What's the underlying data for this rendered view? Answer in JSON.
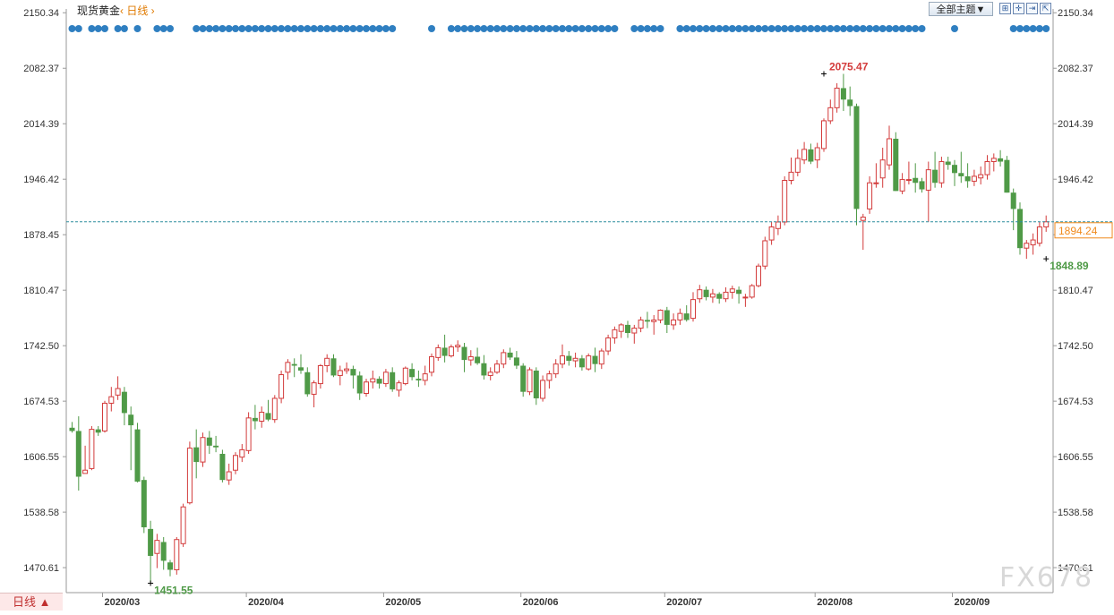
{
  "header": {
    "instrument": "现货黄金",
    "period_label": "‹ 日线 ›",
    "theme_button": "全部主题▼",
    "tool_icons": [
      "zoom-fit-icon",
      "crosshair-icon",
      "go-end-icon",
      "expand-icon"
    ]
  },
  "bottom_bar": {
    "period_label": "日线 ▲"
  },
  "watermark": "FX678",
  "colors": {
    "up": "#d33b3b",
    "down": "#4f9a47",
    "dots": "#2f7fc1",
    "price_line": "#2e8e9e",
    "price_tag": "#f08a1c"
  },
  "chart_data": {
    "type": "candlestick",
    "ylim": [
      1440,
      2155
    ],
    "y_ticks": [
      2150.34,
      2082.37,
      2014.39,
      1946.42,
      1878.45,
      1810.47,
      1742.5,
      1674.53,
      1606.55,
      1538.58,
      1470.61
    ],
    "x_ticks": [
      {
        "label": "2020/03",
        "index": 5
      },
      {
        "label": "2020/04",
        "index": 27
      },
      {
        "label": "2020/05",
        "index": 48
      },
      {
        "label": "2020/06",
        "index": 69
      },
      {
        "label": "2020/07",
        "index": 91
      },
      {
        "label": "2020/08",
        "index": 114
      },
      {
        "label": "2020/09",
        "index": 135
      }
    ],
    "current_price": 1894.24,
    "high_annotation": {
      "label": "2075.47",
      "index": 115,
      "value": 2075.47
    },
    "low_annotation": {
      "label": "1451.55",
      "index": 12,
      "value": 1451.55
    },
    "low2_annotation": {
      "label": "1848.89",
      "index": 149,
      "value": 1848.89
    },
    "candles": [
      [
        1642,
        1649,
        1636,
        1638
      ],
      [
        1638,
        1656,
        1565,
        1582
      ],
      [
        1586,
        1620,
        1586,
        1590
      ],
      [
        1592,
        1644,
        1590,
        1640
      ],
      [
        1640,
        1644,
        1632,
        1636
      ],
      [
        1638,
        1675,
        1636,
        1672
      ],
      [
        1672,
        1692,
        1662,
        1680
      ],
      [
        1682,
        1705,
        1676,
        1690
      ],
      [
        1686,
        1692,
        1645,
        1660
      ],
      [
        1658,
        1668,
        1590,
        1645
      ],
      [
        1640,
        1648,
        1575,
        1576
      ],
      [
        1578,
        1582,
        1513,
        1520
      ],
      [
        1518,
        1528,
        1451,
        1485
      ],
      [
        1488,
        1512,
        1470,
        1504
      ],
      [
        1502,
        1508,
        1468,
        1479
      ],
      [
        1477,
        1480,
        1460,
        1468
      ],
      [
        1468,
        1508,
        1462,
        1505
      ],
      [
        1500,
        1549,
        1496,
        1545
      ],
      [
        1550,
        1625,
        1548,
        1617
      ],
      [
        1618,
        1640,
        1580,
        1600
      ],
      [
        1600,
        1636,
        1594,
        1630
      ],
      [
        1630,
        1638,
        1610,
        1620
      ],
      [
        1620,
        1632,
        1612,
        1618
      ],
      [
        1610,
        1615,
        1575,
        1578
      ],
      [
        1578,
        1598,
        1572,
        1588
      ],
      [
        1590,
        1612,
        1585,
        1608
      ],
      [
        1606,
        1622,
        1600,
        1615
      ],
      [
        1614,
        1661,
        1610,
        1654
      ],
      [
        1654,
        1670,
        1640,
        1650
      ],
      [
        1650,
        1668,
        1642,
        1661
      ],
      [
        1660,
        1676,
        1650,
        1652
      ],
      [
        1652,
        1682,
        1648,
        1678
      ],
      [
        1678,
        1712,
        1672,
        1707
      ],
      [
        1710,
        1726,
        1701,
        1722
      ],
      [
        1720,
        1727,
        1704,
        1718
      ],
      [
        1716,
        1732,
        1708,
        1712
      ],
      [
        1710,
        1716,
        1680,
        1683
      ],
      [
        1683,
        1700,
        1667,
        1697
      ],
      [
        1696,
        1720,
        1690,
        1718
      ],
      [
        1718,
        1732,
        1710,
        1727
      ],
      [
        1727,
        1732,
        1704,
        1706
      ],
      [
        1706,
        1718,
        1694,
        1712
      ],
      [
        1712,
        1722,
        1708,
        1714
      ],
      [
        1714,
        1718,
        1690,
        1706
      ],
      [
        1706,
        1711,
        1676,
        1684
      ],
      [
        1684,
        1702,
        1680,
        1698
      ],
      [
        1698,
        1712,
        1690,
        1702
      ],
      [
        1702,
        1705,
        1690,
        1696
      ],
      [
        1696,
        1714,
        1692,
        1710
      ],
      [
        1710,
        1716,
        1686,
        1689
      ],
      [
        1688,
        1700,
        1680,
        1697
      ],
      [
        1696,
        1717,
        1694,
        1715
      ],
      [
        1714,
        1721,
        1700,
        1704
      ],
      [
        1702,
        1712,
        1692,
        1700
      ],
      [
        1700,
        1718,
        1694,
        1708
      ],
      [
        1710,
        1733,
        1705,
        1729
      ],
      [
        1728,
        1744,
        1724,
        1740
      ],
      [
        1740,
        1756,
        1722,
        1730
      ],
      [
        1730,
        1744,
        1728,
        1741
      ],
      [
        1741,
        1749,
        1735,
        1743
      ],
      [
        1741,
        1746,
        1710,
        1725
      ],
      [
        1725,
        1737,
        1718,
        1729
      ],
      [
        1729,
        1740,
        1719,
        1721
      ],
      [
        1721,
        1731,
        1701,
        1706
      ],
      [
        1706,
        1716,
        1700,
        1710
      ],
      [
        1710,
        1725,
        1708,
        1720
      ],
      [
        1720,
        1738,
        1715,
        1734
      ],
      [
        1734,
        1740,
        1725,
        1728
      ],
      [
        1728,
        1736,
        1714,
        1718
      ],
      [
        1718,
        1721,
        1680,
        1686
      ],
      [
        1686,
        1716,
        1682,
        1713
      ],
      [
        1712,
        1716,
        1670,
        1678
      ],
      [
        1678,
        1706,
        1674,
        1700
      ],
      [
        1700,
        1712,
        1690,
        1708
      ],
      [
        1708,
        1726,
        1703,
        1720
      ],
      [
        1720,
        1744,
        1715,
        1730
      ],
      [
        1730,
        1736,
        1718,
        1724
      ],
      [
        1724,
        1734,
        1716,
        1727
      ],
      [
        1727,
        1731,
        1712,
        1716
      ],
      [
        1714,
        1733,
        1712,
        1730
      ],
      [
        1730,
        1740,
        1710,
        1720
      ],
      [
        1720,
        1739,
        1714,
        1736
      ],
      [
        1736,
        1756,
        1731,
        1752
      ],
      [
        1752,
        1766,
        1745,
        1762
      ],
      [
        1760,
        1770,
        1752,
        1768
      ],
      [
        1768,
        1773,
        1752,
        1758
      ],
      [
        1758,
        1768,
        1745,
        1764
      ],
      [
        1764,
        1778,
        1759,
        1774
      ],
      [
        1774,
        1784,
        1764,
        1772
      ],
      [
        1772,
        1780,
        1756,
        1774
      ],
      [
        1774,
        1787,
        1770,
        1786
      ],
      [
        1786,
        1790,
        1758,
        1768
      ],
      [
        1768,
        1782,
        1762,
        1774
      ],
      [
        1774,
        1788,
        1768,
        1782
      ],
      [
        1782,
        1792,
        1772,
        1774
      ],
      [
        1776,
        1808,
        1772,
        1799
      ],
      [
        1800,
        1817,
        1795,
        1811
      ],
      [
        1811,
        1815,
        1798,
        1802
      ],
      [
        1802,
        1812,
        1795,
        1806
      ],
      [
        1806,
        1808,
        1794,
        1800
      ],
      [
        1800,
        1814,
        1796,
        1808
      ],
      [
        1808,
        1816,
        1800,
        1812
      ],
      [
        1811,
        1815,
        1794,
        1806
      ],
      [
        1802,
        1806,
        1790,
        1802
      ],
      [
        1802,
        1818,
        1800,
        1816
      ],
      [
        1816,
        1843,
        1814,
        1840
      ],
      [
        1840,
        1876,
        1836,
        1871
      ],
      [
        1872,
        1894,
        1866,
        1888
      ],
      [
        1886,
        1902,
        1878,
        1894
      ],
      [
        1894,
        1950,
        1890,
        1945
      ],
      [
        1945,
        1973,
        1940,
        1955
      ],
      [
        1955,
        1983,
        1950,
        1972
      ],
      [
        1970,
        1992,
        1965,
        1983
      ],
      [
        1983,
        1990,
        1965,
        1968
      ],
      [
        1970,
        1991,
        1960,
        1985
      ],
      [
        1984,
        2021,
        1980,
        2018
      ],
      [
        2018,
        2044,
        2014,
        2034
      ],
      [
        2034,
        2064,
        2028,
        2058
      ],
      [
        2058,
        2075.47,
        2030,
        2044
      ],
      [
        2044,
        2060,
        2024,
        2036
      ],
      [
        2036,
        2039,
        1890,
        1910
      ],
      [
        1896,
        1904,
        1860,
        1900
      ],
      [
        1910,
        1950,
        1904,
        1942
      ],
      [
        1942,
        1966,
        1936,
        1942
      ],
      [
        1948,
        1985,
        1936,
        1970
      ],
      [
        1964,
        2012,
        1958,
        1996
      ],
      [
        1996,
        2004,
        1932,
        1932
      ],
      [
        1932,
        1954,
        1928,
        1946
      ],
      [
        1946,
        1968,
        1940,
        1946
      ],
      [
        1948,
        1966,
        1930,
        1942
      ],
      [
        1944,
        1948,
        1930,
        1934
      ],
      [
        1933,
        1968,
        1894,
        1958
      ],
      [
        1958,
        1980,
        1936,
        1942
      ],
      [
        1942,
        1974,
        1936,
        1968
      ],
      [
        1968,
        1974,
        1958,
        1964
      ],
      [
        1964,
        1970,
        1938,
        1954
      ],
      [
        1954,
        1980,
        1942,
        1950
      ],
      [
        1950,
        1966,
        1936,
        1944
      ],
      [
        1944,
        1958,
        1938,
        1950
      ],
      [
        1948,
        1962,
        1940,
        1952
      ],
      [
        1952,
        1976,
        1946,
        1968
      ],
      [
        1968,
        1978,
        1956,
        1972
      ],
      [
        1972,
        1982,
        1962,
        1968
      ],
      [
        1970,
        1975,
        1930,
        1930
      ],
      [
        1930,
        1935,
        1884,
        1910
      ],
      [
        1910,
        1918,
        1854,
        1862
      ],
      [
        1862,
        1872,
        1848.89,
        1868
      ],
      [
        1866,
        1880,
        1854,
        1872
      ],
      [
        1868,
        1894,
        1864,
        1888
      ],
      [
        1888,
        1902,
        1882,
        1894.24
      ]
    ]
  }
}
